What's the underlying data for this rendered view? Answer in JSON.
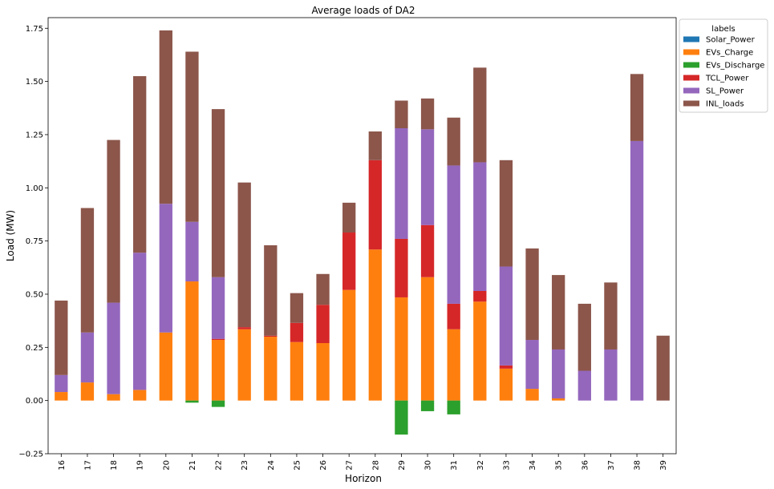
{
  "chart_data": {
    "type": "bar",
    "stacked": true,
    "title": "Average loads of DA2",
    "xlabel": "Horizon",
    "ylabel": "Load (MW)",
    "ylim": [
      -0.25,
      1.8
    ],
    "yticks": [
      -0.25,
      0.0,
      0.25,
      0.5,
      0.75,
      1.0,
      1.25,
      1.5,
      1.75
    ],
    "ytick_labels": [
      "−0.25",
      "0.00",
      "0.25",
      "0.50",
      "0.75",
      "1.00",
      "1.25",
      "1.50",
      "1.75"
    ],
    "grid": false,
    "legend": {
      "title": "labels",
      "placement": "outside-top-right"
    },
    "categories": [
      "16",
      "17",
      "18",
      "19",
      "20",
      "21",
      "22",
      "23",
      "24",
      "25",
      "26",
      "27",
      "28",
      "29",
      "30",
      "31",
      "32",
      "33",
      "34",
      "35",
      "36",
      "37",
      "38",
      "39"
    ],
    "series": [
      {
        "name": "Solar_Power",
        "color": "#1f77b4",
        "values": [
          0,
          0,
          0,
          0,
          0,
          0,
          0,
          0,
          0,
          0,
          0,
          0,
          0,
          0,
          0,
          0,
          0,
          0,
          0,
          0,
          0,
          0,
          0,
          0
        ]
      },
      {
        "name": "EVs_Charge",
        "color": "#ff7f0e",
        "values": [
          0.04,
          0.085,
          0.03,
          0.05,
          0.32,
          0.56,
          0.285,
          0.335,
          0.3,
          0.275,
          0.27,
          0.52,
          0.71,
          0.485,
          0.58,
          0.335,
          0.465,
          0.15,
          0.055,
          0.01,
          0,
          0,
          0,
          0
        ]
      },
      {
        "name": "EVs_Discharge",
        "color": "#2ca02c",
        "values": [
          0,
          0,
          0,
          0,
          0,
          -0.01,
          -0.03,
          0,
          0,
          0,
          0,
          0,
          0,
          -0.16,
          -0.05,
          -0.065,
          0,
          0,
          0,
          0,
          0,
          0,
          0,
          0
        ]
      },
      {
        "name": "TCL_Power",
        "color": "#d62728",
        "values": [
          0,
          0,
          0,
          0,
          0,
          0,
          0.005,
          0.01,
          0.005,
          0.09,
          0.18,
          0.27,
          0.42,
          0.275,
          0.245,
          0.12,
          0.05,
          0.015,
          0,
          0,
          0,
          0,
          0,
          0
        ]
      },
      {
        "name": "SL_Power",
        "color": "#9467bd",
        "values": [
          0.08,
          0.235,
          0.43,
          0.645,
          0.605,
          0.28,
          0.29,
          0,
          0,
          0,
          0,
          0,
          0,
          0.52,
          0.45,
          0.65,
          0.605,
          0.465,
          0.23,
          0.23,
          0.14,
          0.24,
          1.22,
          0
        ]
      },
      {
        "name": "INL_loads",
        "color": "#8c564b",
        "values": [
          0.35,
          0.585,
          0.765,
          0.83,
          0.815,
          0.8,
          0.79,
          0.68,
          0.425,
          0.14,
          0.145,
          0.14,
          0.135,
          0.13,
          0.145,
          0.225,
          0.445,
          0.5,
          0.43,
          0.35,
          0.315,
          0.315,
          0.315,
          0.305
        ]
      }
    ]
  }
}
